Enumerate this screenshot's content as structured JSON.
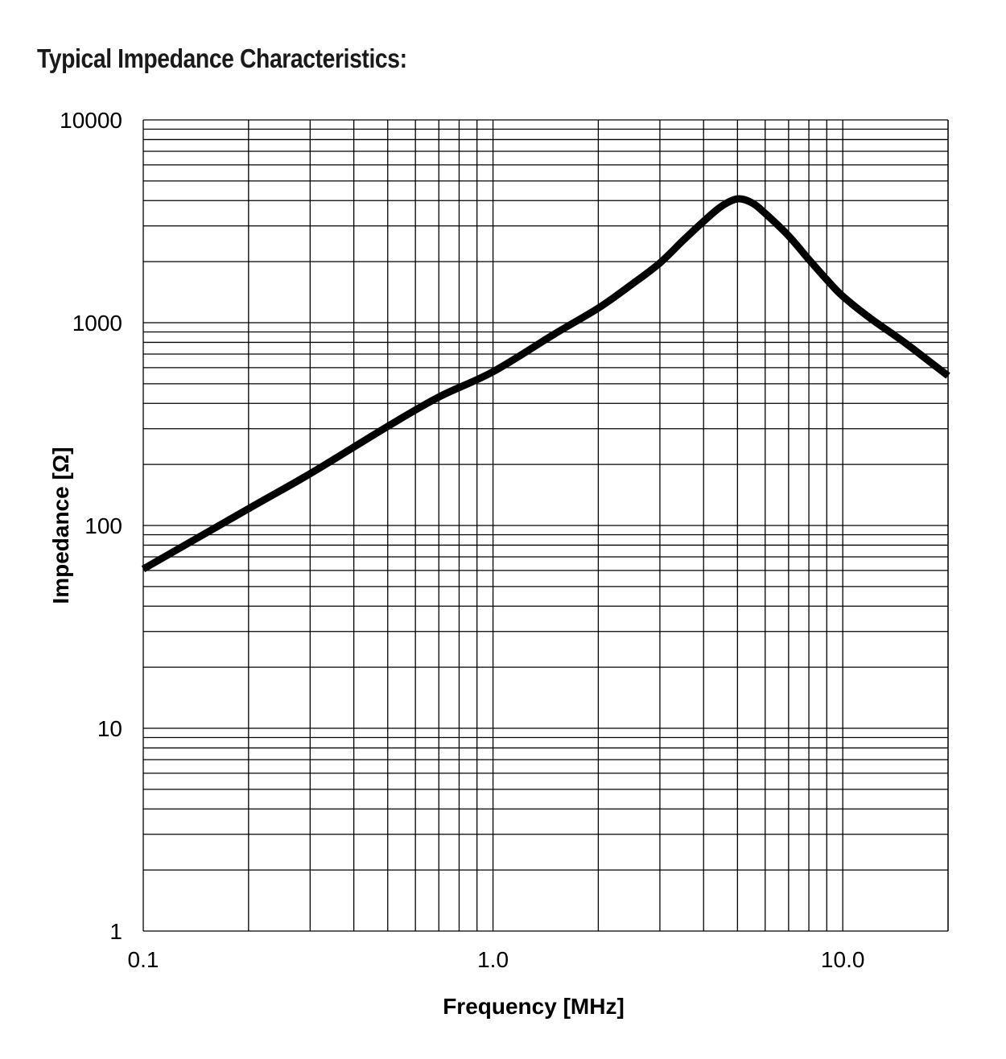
{
  "chart_data": {
    "type": "line",
    "title": "Typical Impedance Characteristics:",
    "xlabel": "Frequency [MHz]",
    "ylabel": "Impedance [Ω]",
    "xscale": "log",
    "yscale": "log",
    "xlim": [
      0.1,
      20
    ],
    "ylim": [
      1,
      10000
    ],
    "grid": true,
    "x_tick_labels": [
      "0.1",
      "1.0",
      "10.0"
    ],
    "x_ticks": [
      0.1,
      1,
      10
    ],
    "y_tick_labels": [
      "1",
      "10",
      "100",
      "1000",
      "10000"
    ],
    "y_ticks": [
      1,
      10,
      100,
      1000,
      10000
    ],
    "line_color": "#000000",
    "series": [
      {
        "x": [
          0.1,
          0.2,
          0.3,
          0.5,
          0.7,
          1.0,
          1.5,
          2.0,
          2.5,
          3.0,
          3.5,
          4.0,
          4.5,
          5.0,
          5.5,
          6.0,
          7.0,
          8.0,
          9.0,
          10.0,
          12.0,
          15.0,
          20.0
        ],
        "y": [
          61,
          121,
          180,
          308,
          430,
          573,
          880,
          1180,
          1550,
          1970,
          2550,
          3160,
          3750,
          4080,
          3900,
          3460,
          2680,
          2050,
          1630,
          1350,
          1050,
          800,
          547
        ]
      }
    ]
  }
}
